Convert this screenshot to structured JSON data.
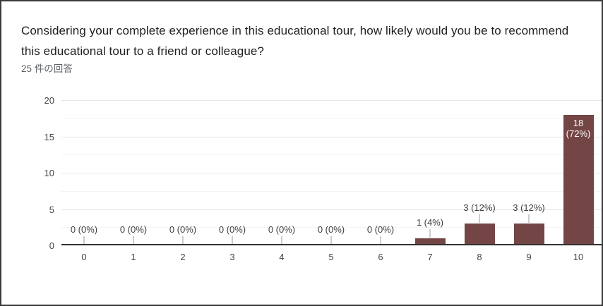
{
  "header": {
    "title": "Considering your complete experience in this educational tour, how likely would you be to recommend this educational tour to a friend or colleague?",
    "response_count": "25 件の回答"
  },
  "chart_data": {
    "type": "bar",
    "title": "Considering your complete experience in this educational tour, how likely would you be to recommend this educational tour to a friend or colleague?",
    "subtitle": "25 件の回答",
    "categories": [
      "0",
      "1",
      "2",
      "3",
      "4",
      "5",
      "6",
      "7",
      "8",
      "9",
      "10"
    ],
    "values": [
      0,
      0,
      0,
      0,
      0,
      0,
      0,
      1,
      3,
      3,
      18
    ],
    "value_labels": [
      "0 (0%)",
      "0 (0%)",
      "0 (0%)",
      "0 (0%)",
      "0 (0%)",
      "0 (0%)",
      "0 (0%)",
      "1 (4%)",
      "3 (12%)",
      "3 (12%)",
      "18 (72%)"
    ],
    "xlabel": "",
    "ylabel": "",
    "ylim": [
      0,
      20
    ],
    "yticks": [
      0,
      5,
      10,
      15,
      20
    ],
    "minor_gridlines": [
      2.5,
      7.5,
      12.5,
      17.5
    ],
    "grid": true,
    "legend": "none",
    "colors": {
      "bar": "#744545",
      "bar_label_inside": "#ffffff",
      "axis_label": "#444444",
      "data_label": "#404040",
      "grid_major": "#e6e6e6",
      "grid_minor": "#f4f4f4",
      "baseline": "#333333",
      "leader_line": "#cccccc"
    }
  }
}
